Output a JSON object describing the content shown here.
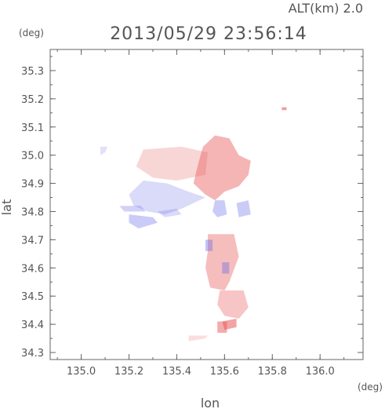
{
  "header": {
    "altitude_label": "ALT(km) 2.0",
    "timestamp": "2013/05/29 23:56:14"
  },
  "colors": {
    "axis": "#666666",
    "positive": "#e85a5a",
    "negative": "#6a6ae8",
    "text": "#555555"
  },
  "chart_data": {
    "type": "heatmap",
    "title": "2013/05/29 23:56:14",
    "subtitle": "ALT(km) 2.0",
    "xlabel": "lon",
    "ylabel": "lat",
    "x_unit": "(deg)",
    "y_unit": "(deg)",
    "xlim": [
      134.87,
      136.18
    ],
    "ylim": [
      34.275,
      35.375
    ],
    "x_ticks": [
      135.0,
      135.2,
      135.4,
      135.6,
      135.8,
      136.0
    ],
    "x_tick_labels": [
      "135.0",
      "135.2",
      "135.4",
      "135.6",
      "135.8",
      "136.0"
    ],
    "y_ticks": [
      34.3,
      34.4,
      34.5,
      34.6,
      34.7,
      34.8,
      34.9,
      35.0,
      35.1,
      35.2,
      35.3
    ],
    "y_tick_labels": [
      "34.3",
      "34.4",
      "34.5",
      "34.6",
      "34.7",
      "34.8",
      "34.9",
      "35.0",
      "35.1",
      "35.2",
      "35.3"
    ],
    "grid": false,
    "colorbar": "none visible",
    "regions": [
      {
        "sign": "positive",
        "intensity": 0.25,
        "points": [
          [
            135.26,
            35.02
          ],
          [
            135.42,
            35.03
          ],
          [
            135.53,
            35.01
          ],
          [
            135.52,
            34.93
          ],
          [
            135.4,
            34.91
          ],
          [
            135.3,
            34.92
          ],
          [
            135.23,
            34.96
          ]
        ]
      },
      {
        "sign": "positive",
        "intensity": 0.45,
        "points": [
          [
            135.51,
            35.03
          ],
          [
            135.56,
            35.07
          ],
          [
            135.62,
            35.06
          ],
          [
            135.66,
            35.0
          ],
          [
            135.71,
            34.98
          ],
          [
            135.7,
            34.93
          ],
          [
            135.66,
            34.89
          ],
          [
            135.6,
            34.87
          ],
          [
            135.56,
            34.84
          ],
          [
            135.52,
            34.86
          ],
          [
            135.47,
            34.9
          ],
          [
            135.49,
            34.97
          ]
        ]
      },
      {
        "sign": "negative",
        "intensity": 0.25,
        "points": [
          [
            135.26,
            34.91
          ],
          [
            135.36,
            34.9
          ],
          [
            135.45,
            34.87
          ],
          [
            135.52,
            34.85
          ],
          [
            135.47,
            34.83
          ],
          [
            135.42,
            34.81
          ],
          [
            135.35,
            34.79
          ],
          [
            135.28,
            34.8
          ],
          [
            135.22,
            34.82
          ],
          [
            135.2,
            34.86
          ]
        ]
      },
      {
        "sign": "negative",
        "intensity": 0.35,
        "points": [
          [
            135.2,
            34.79
          ],
          [
            135.3,
            34.78
          ],
          [
            135.32,
            34.76
          ],
          [
            135.24,
            34.74
          ],
          [
            135.2,
            34.76
          ]
        ]
      },
      {
        "sign": "negative",
        "intensity": 0.3,
        "points": [
          [
            135.16,
            34.82
          ],
          [
            135.25,
            34.82
          ],
          [
            135.27,
            34.8
          ],
          [
            135.18,
            34.8
          ]
        ]
      },
      {
        "sign": "negative",
        "intensity": 0.25,
        "points": [
          [
            135.32,
            34.8
          ],
          [
            135.4,
            34.81
          ],
          [
            135.42,
            34.79
          ],
          [
            135.35,
            34.78
          ]
        ]
      },
      {
        "sign": "negative",
        "intensity": 0.2,
        "points": [
          [
            135.08,
            35.03
          ],
          [
            135.11,
            35.03
          ],
          [
            135.1,
            35.01
          ],
          [
            135.08,
            35.0
          ]
        ]
      },
      {
        "sign": "positive",
        "intensity": 0.6,
        "points": [
          [
            135.84,
            35.17
          ],
          [
            135.86,
            35.17
          ],
          [
            135.86,
            35.16
          ],
          [
            135.84,
            35.16
          ]
        ]
      },
      {
        "sign": "positive",
        "intensity": 0.4,
        "points": [
          [
            135.53,
            34.72
          ],
          [
            135.64,
            34.72
          ],
          [
            135.66,
            34.64
          ],
          [
            135.62,
            34.55
          ],
          [
            135.6,
            34.52
          ],
          [
            135.54,
            34.53
          ],
          [
            135.52,
            34.6
          ],
          [
            135.53,
            34.66
          ]
        ]
      },
      {
        "sign": "negative",
        "intensity": 0.4,
        "points": [
          [
            135.52,
            34.7
          ],
          [
            135.55,
            34.7
          ],
          [
            135.55,
            34.66
          ],
          [
            135.52,
            34.66
          ]
        ]
      },
      {
        "sign": "negative",
        "intensity": 0.4,
        "points": [
          [
            135.59,
            34.62
          ],
          [
            135.62,
            34.62
          ],
          [
            135.62,
            34.58
          ],
          [
            135.59,
            34.58
          ]
        ]
      },
      {
        "sign": "positive",
        "intensity": 0.35,
        "points": [
          [
            135.58,
            34.52
          ],
          [
            135.68,
            34.52
          ],
          [
            135.7,
            34.46
          ],
          [
            135.66,
            34.42
          ],
          [
            135.6,
            34.43
          ],
          [
            135.57,
            34.47
          ]
        ]
      },
      {
        "sign": "positive",
        "intensity": 0.55,
        "points": [
          [
            135.59,
            34.41
          ],
          [
            135.65,
            34.42
          ],
          [
            135.65,
            34.39
          ],
          [
            135.6,
            34.38
          ]
        ]
      },
      {
        "sign": "positive",
        "intensity": 0.5,
        "points": [
          [
            135.57,
            34.41
          ],
          [
            135.61,
            34.41
          ],
          [
            135.61,
            34.37
          ],
          [
            135.57,
            34.37
          ]
        ]
      },
      {
        "sign": "negative",
        "intensity": 0.35,
        "points": [
          [
            135.56,
            34.84
          ],
          [
            135.6,
            34.84
          ],
          [
            135.61,
            34.79
          ],
          [
            135.57,
            34.78
          ],
          [
            135.55,
            34.8
          ]
        ]
      },
      {
        "sign": "negative",
        "intensity": 0.35,
        "points": [
          [
            135.65,
            34.83
          ],
          [
            135.7,
            34.84
          ],
          [
            135.71,
            34.79
          ],
          [
            135.66,
            34.78
          ]
        ]
      },
      {
        "sign": "positive",
        "intensity": 0.2,
        "points": [
          [
            135.45,
            34.36
          ],
          [
            135.53,
            34.36
          ],
          [
            135.52,
            34.35
          ],
          [
            135.45,
            34.34
          ]
        ]
      }
    ]
  }
}
